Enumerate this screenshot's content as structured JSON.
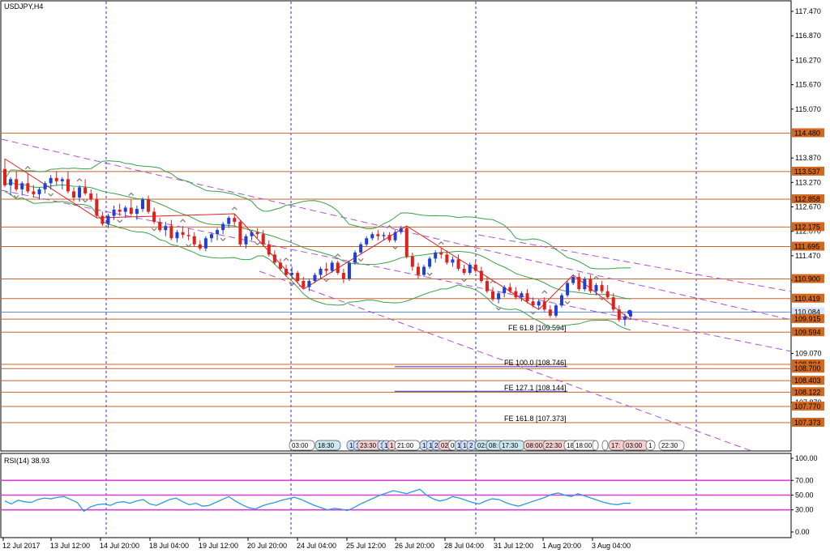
{
  "symbol_label": "USDJPY,H4",
  "rsi_label": "RSI(14) 38.93",
  "colors": {
    "bull": "#1f3fd6",
    "bear": "#e0201b",
    "level_line": "#c8642a",
    "level_fill": "#d2691e",
    "channel": "#b14fd6",
    "bands": "#3aa04a",
    "zigzag": "#e0201b",
    "rsi_line": "#2c9ad8",
    "rsi_level": "#d53fd6",
    "current_price": "#3d6bd0",
    "time_sep": "#2b2bc8"
  },
  "price_axis": [
    "117.470",
    "116.870",
    "116.270",
    "115.670",
    "115.070",
    "113.870",
    "113.270",
    "112.670",
    "112.070",
    "111.470",
    "110.870",
    "109.070",
    "107.870"
  ],
  "price_boxes": [
    "114.480",
    "113.537",
    "112.858",
    "112.175",
    "111.695",
    "110.900",
    "110.419",
    "110.084",
    "109.915",
    "109.594",
    "108.804",
    "108.700",
    "108.403",
    "108.122",
    "107.770",
    "107.373"
  ],
  "fe_labels": [
    "FE 61.8 [109.594]",
    "FE 100.0 [108.746]",
    "FE 127.1 [108.144]",
    "FE 161.8 [107.373]"
  ],
  "session_tags": [
    "03:00",
    "18:30",
    "1",
    "1",
    "23:30",
    "1",
    "1",
    "1",
    "21:00",
    "1",
    "1",
    "2",
    "02:",
    "0",
    "1",
    "1",
    "2",
    "02:",
    "08:",
    "17:30",
    "08:00",
    "22:30",
    "18:",
    "18:00",
    "",
    "",
    "17:",
    "03:00",
    "1",
    "22:30"
  ],
  "rsi_axis": [
    "100.00",
    "70.00",
    "50.00",
    "30.00",
    "0.00"
  ],
  "time_axis": [
    "12 Jul 2017",
    "13 Jul 12:00",
    "14 Jul 20:00",
    "18 Jul 04:00",
    "19 Jul 12:00",
    "20 Jul 20:00",
    "24 Jul 04:00",
    "25 Jul 12:00",
    "26 Jul 20:00",
    "28 Jul 04:00",
    "31 Jul 12:00",
    "1 Aug 20:00",
    "3 Aug 04:00"
  ],
  "chart_data": {
    "type": "candlestick",
    "symbol": "USDJPY",
    "timeframe": "H4",
    "candles": [
      [
        113.6,
        113.85,
        113.15,
        113.2
      ],
      [
        113.2,
        113.4,
        112.95,
        113.35
      ],
      [
        113.35,
        113.55,
        113.05,
        113.1
      ],
      [
        113.1,
        113.3,
        112.95,
        113.25
      ],
      [
        113.25,
        113.5,
        113.0,
        113.05
      ],
      [
        113.05,
        113.2,
        112.9,
        112.98
      ],
      [
        112.98,
        113.15,
        112.85,
        113.1
      ],
      [
        113.1,
        113.3,
        113.0,
        113.25
      ],
      [
        113.25,
        113.45,
        113.1,
        113.38
      ],
      [
        113.38,
        113.55,
        113.2,
        113.3
      ],
      [
        113.3,
        113.4,
        113.1,
        113.35
      ],
      [
        113.35,
        113.55,
        113.0,
        113.05
      ],
      [
        113.05,
        113.15,
        112.8,
        112.9
      ],
      [
        112.9,
        113.2,
        112.8,
        113.15
      ],
      [
        113.15,
        113.35,
        112.95,
        113.0
      ],
      [
        113.0,
        113.1,
        112.8,
        112.85
      ],
      [
        112.85,
        113.0,
        112.4,
        112.45
      ],
      [
        112.45,
        112.55,
        112.2,
        112.25
      ],
      [
        112.25,
        112.5,
        112.15,
        112.45
      ],
      [
        112.45,
        112.7,
        112.35,
        112.6
      ],
      [
        112.6,
        112.75,
        112.45,
        112.55
      ],
      [
        112.55,
        112.7,
        112.4,
        112.65
      ],
      [
        112.65,
        112.85,
        112.45,
        112.5
      ],
      [
        112.5,
        112.7,
        112.35,
        112.62
      ],
      [
        112.62,
        112.9,
        112.55,
        112.85
      ],
      [
        112.85,
        112.95,
        112.5,
        112.55
      ],
      [
        112.55,
        112.65,
        112.25,
        112.3
      ],
      [
        112.3,
        112.4,
        112.05,
        112.1
      ],
      [
        112.1,
        112.3,
        111.95,
        112.2
      ],
      [
        112.2,
        112.35,
        111.85,
        111.9
      ],
      [
        111.9,
        112.1,
        111.8,
        112.05
      ],
      [
        112.05,
        112.2,
        111.9,
        111.98
      ],
      [
        111.98,
        112.15,
        111.85,
        111.95
      ],
      [
        111.95,
        112.05,
        111.7,
        111.75
      ],
      [
        111.75,
        111.85,
        111.6,
        111.65
      ],
      [
        111.65,
        111.95,
        111.58,
        111.9
      ],
      [
        111.9,
        112.05,
        111.8,
        112.0
      ],
      [
        112.0,
        112.15,
        111.85,
        112.1
      ],
      [
        112.1,
        112.3,
        112.0,
        112.25
      ],
      [
        112.25,
        112.45,
        112.15,
        112.4
      ],
      [
        112.4,
        112.5,
        112.2,
        112.3
      ],
      [
        112.3,
        112.35,
        111.7,
        111.75
      ],
      [
        111.75,
        112.0,
        111.65,
        111.95
      ],
      [
        111.95,
        112.1,
        111.85,
        112.05
      ],
      [
        112.05,
        112.15,
        111.9,
        112.0
      ],
      [
        112.0,
        112.1,
        111.7,
        111.75
      ],
      [
        111.75,
        111.85,
        111.45,
        111.5
      ],
      [
        111.5,
        111.6,
        111.25,
        111.3
      ],
      [
        111.3,
        111.4,
        111.1,
        111.15
      ],
      [
        111.15,
        111.25,
        110.95,
        111.0
      ],
      [
        111.0,
        111.2,
        110.9,
        111.05
      ],
      [
        111.05,
        111.1,
        110.8,
        110.85
      ],
      [
        110.85,
        110.95,
        110.65,
        110.7
      ],
      [
        110.7,
        110.9,
        110.6,
        110.85
      ],
      [
        110.85,
        111.05,
        110.8,
        111.0
      ],
      [
        111.0,
        111.2,
        110.9,
        111.15
      ],
      [
        111.15,
        111.3,
        111.0,
        111.1
      ],
      [
        111.1,
        111.35,
        111.05,
        111.3
      ],
      [
        111.3,
        111.35,
        111.0,
        111.05
      ],
      [
        111.05,
        111.15,
        110.8,
        110.9
      ],
      [
        110.9,
        111.35,
        110.85,
        111.3
      ],
      [
        111.3,
        111.6,
        111.25,
        111.55
      ],
      [
        111.55,
        111.8,
        111.5,
        111.75
      ],
      [
        111.75,
        111.95,
        111.7,
        111.9
      ],
      [
        111.9,
        112.05,
        111.85,
        112.0
      ],
      [
        112.0,
        112.1,
        111.85,
        111.95
      ],
      [
        111.95,
        112.05,
        111.85,
        111.98
      ],
      [
        111.98,
        112.05,
        111.8,
        111.85
      ],
      [
        111.85,
        112.1,
        111.8,
        112.05
      ],
      [
        112.05,
        112.2,
        112.0,
        112.15
      ],
      [
        112.15,
        112.2,
        111.4,
        111.45
      ],
      [
        111.45,
        111.55,
        111.1,
        111.2
      ],
      [
        111.2,
        111.3,
        110.9,
        111.0
      ],
      [
        111.0,
        111.25,
        110.95,
        111.2
      ],
      [
        111.2,
        111.45,
        111.15,
        111.4
      ],
      [
        111.4,
        111.6,
        111.3,
        111.55
      ],
      [
        111.55,
        111.65,
        111.4,
        111.5
      ],
      [
        111.5,
        111.6,
        111.25,
        111.3
      ],
      [
        111.3,
        111.45,
        111.2,
        111.38
      ],
      [
        111.38,
        111.5,
        111.1,
        111.15
      ],
      [
        111.15,
        111.25,
        111.0,
        111.05
      ],
      [
        111.05,
        111.3,
        111.0,
        111.25
      ],
      [
        111.25,
        111.35,
        111.05,
        111.1
      ],
      [
        111.1,
        111.2,
        110.8,
        110.85
      ],
      [
        110.85,
        110.95,
        110.55,
        110.6
      ],
      [
        110.6,
        110.7,
        110.35,
        110.4
      ],
      [
        110.4,
        110.6,
        110.3,
        110.55
      ],
      [
        110.55,
        110.75,
        110.45,
        110.7
      ],
      [
        110.7,
        110.8,
        110.55,
        110.6
      ],
      [
        110.6,
        110.7,
        110.4,
        110.45
      ],
      [
        110.45,
        110.6,
        110.35,
        110.55
      ],
      [
        110.55,
        110.65,
        110.3,
        110.35
      ],
      [
        110.35,
        110.45,
        110.2,
        110.25
      ],
      [
        110.25,
        110.4,
        110.15,
        110.35
      ],
      [
        110.35,
        110.45,
        110.1,
        110.15
      ],
      [
        110.15,
        110.25,
        109.95,
        110.0
      ],
      [
        110.0,
        110.3,
        109.95,
        110.25
      ],
      [
        110.25,
        110.55,
        110.2,
        110.5
      ],
      [
        110.5,
        110.85,
        110.45,
        110.8
      ],
      [
        110.8,
        111.0,
        110.75,
        110.95
      ],
      [
        110.95,
        111.05,
        110.6,
        110.65
      ],
      [
        110.65,
        110.95,
        110.6,
        110.9
      ],
      [
        110.9,
        111.0,
        110.55,
        110.6
      ],
      [
        110.6,
        110.8,
        110.5,
        110.75
      ],
      [
        110.75,
        110.85,
        110.55,
        110.6
      ],
      [
        110.6,
        110.75,
        110.4,
        110.45
      ],
      [
        110.45,
        110.55,
        110.1,
        110.15
      ],
      [
        110.15,
        110.25,
        109.85,
        109.9
      ],
      [
        109.9,
        110.05,
        109.75,
        109.98
      ],
      [
        109.98,
        110.1,
        109.9,
        110.05
      ]
    ],
    "horizontal_levels": [
      114.48,
      113.537,
      112.858,
      112.175,
      111.695,
      110.9,
      110.419,
      109.915,
      109.594,
      108.804,
      108.7,
      108.403,
      108.122,
      107.77,
      107.373
    ],
    "current_price": 110.084,
    "fibonacci_expansion": [
      {
        "label": "FE 61.8",
        "value": 109.594
      },
      {
        "label": "FE 100.0",
        "value": 108.746
      },
      {
        "label": "FE 127.1",
        "value": 108.144
      },
      {
        "label": "FE 161.8",
        "value": 107.373
      }
    ],
    "rsi": {
      "period": 14,
      "current": 38.93,
      "levels": [
        70,
        50,
        30
      ],
      "ylim": [
        0,
        100
      ],
      "values": [
        42,
        38,
        43,
        41,
        40,
        44,
        46,
        45,
        47,
        48,
        44,
        40,
        28,
        34,
        37,
        38,
        36,
        40,
        41,
        39,
        42,
        44,
        38,
        36,
        40,
        44,
        46,
        41,
        37,
        39,
        35,
        36,
        40,
        44,
        48,
        42,
        37,
        33,
        31,
        35,
        38,
        40,
        43,
        45,
        47,
        44,
        40,
        36,
        33,
        30,
        32,
        31,
        29,
        33,
        38,
        42,
        46,
        50,
        53,
        56,
        54,
        52,
        55,
        58,
        50,
        45,
        42,
        44,
        48,
        46,
        43,
        40,
        38,
        42,
        45,
        44,
        40,
        37,
        35,
        38,
        41,
        44,
        47,
        51,
        53,
        50,
        48,
        52,
        49,
        46,
        43,
        40,
        38,
        37,
        39,
        38.93
      ]
    },
    "ylim": [
      107.2,
      117.7
    ]
  }
}
